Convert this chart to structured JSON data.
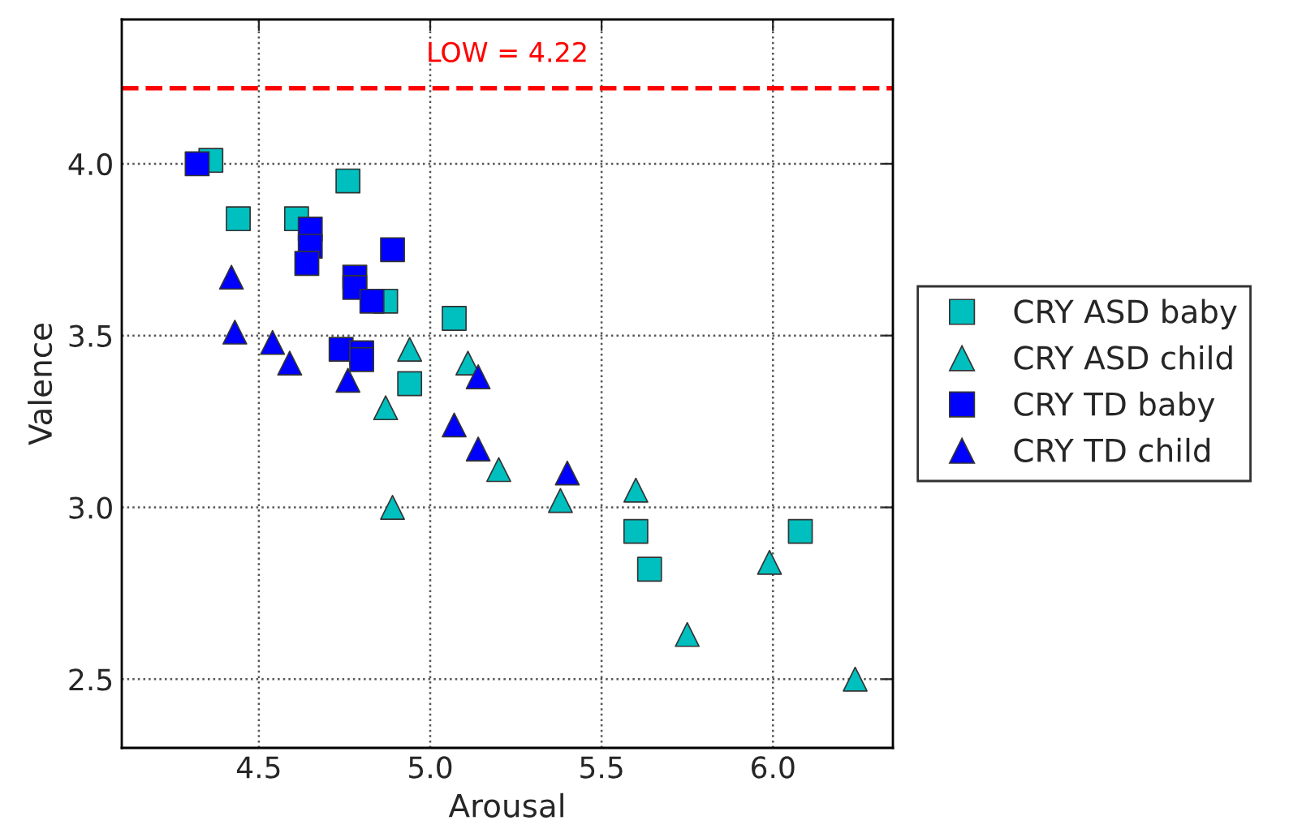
{
  "chart_data": {
    "type": "scatter",
    "xlabel": "Arousal",
    "ylabel": "Valence",
    "xlim": [
      4.1,
      6.35
    ],
    "ylim": [
      2.3,
      4.42
    ],
    "xticks": [
      {
        "value": 4.5,
        "label": "4.5"
      },
      {
        "value": 5.0,
        "label": "5.0"
      },
      {
        "value": 5.5,
        "label": "5.5"
      },
      {
        "value": 6.0,
        "label": "6.0"
      }
    ],
    "yticks": [
      {
        "value": 2.5,
        "label": "2.5"
      },
      {
        "value": 3.0,
        "label": "3.0"
      },
      {
        "value": 3.5,
        "label": "3.5"
      },
      {
        "value": 4.0,
        "label": "4.0"
      }
    ],
    "grid": true,
    "legend": "right",
    "ref_lines": [
      {
        "axis": "y",
        "value": 4.22,
        "label": "LOW = 4.22",
        "color": "#ff0000",
        "line_style": "dashed"
      }
    ],
    "series": [
      {
        "name": "CRY ASD baby",
        "color": "#00bfbf",
        "marker": "square",
        "x": [
          4.36,
          4.44,
          4.61,
          4.76,
          4.87,
          5.07,
          4.94,
          5.6,
          5.64,
          6.08
        ],
        "values": [
          4.01,
          3.84,
          3.84,
          3.95,
          3.6,
          3.55,
          3.36,
          2.93,
          2.82,
          2.93
        ]
      },
      {
        "name": "CRY ASD child",
        "color": "#00bfbf",
        "marker": "triangle",
        "x": [
          4.94,
          5.11,
          4.87,
          4.89,
          5.2,
          5.38,
          5.6,
          5.99,
          5.75,
          6.24
        ],
        "values": [
          3.46,
          3.42,
          3.29,
          3.0,
          3.11,
          3.02,
          3.05,
          2.84,
          2.63,
          2.5
        ]
      },
      {
        "name": "CRY TD baby",
        "color": "#0000ff",
        "marker": "square",
        "x": [
          4.32,
          4.65,
          4.65,
          4.64,
          4.78,
          4.78,
          4.83,
          4.89,
          4.74,
          4.8,
          4.8
        ],
        "values": [
          4.0,
          3.81,
          3.76,
          3.71,
          3.67,
          3.64,
          3.6,
          3.75,
          3.46,
          3.45,
          3.43
        ]
      },
      {
        "name": "CRY TD child",
        "color": "#0000ff",
        "marker": "triangle",
        "x": [
          4.42,
          4.43,
          4.54,
          4.59,
          4.76,
          5.14,
          5.07,
          5.14,
          5.4
        ],
        "values": [
          3.67,
          3.51,
          3.48,
          3.42,
          3.37,
          3.38,
          3.24,
          3.17,
          3.1
        ]
      }
    ]
  }
}
